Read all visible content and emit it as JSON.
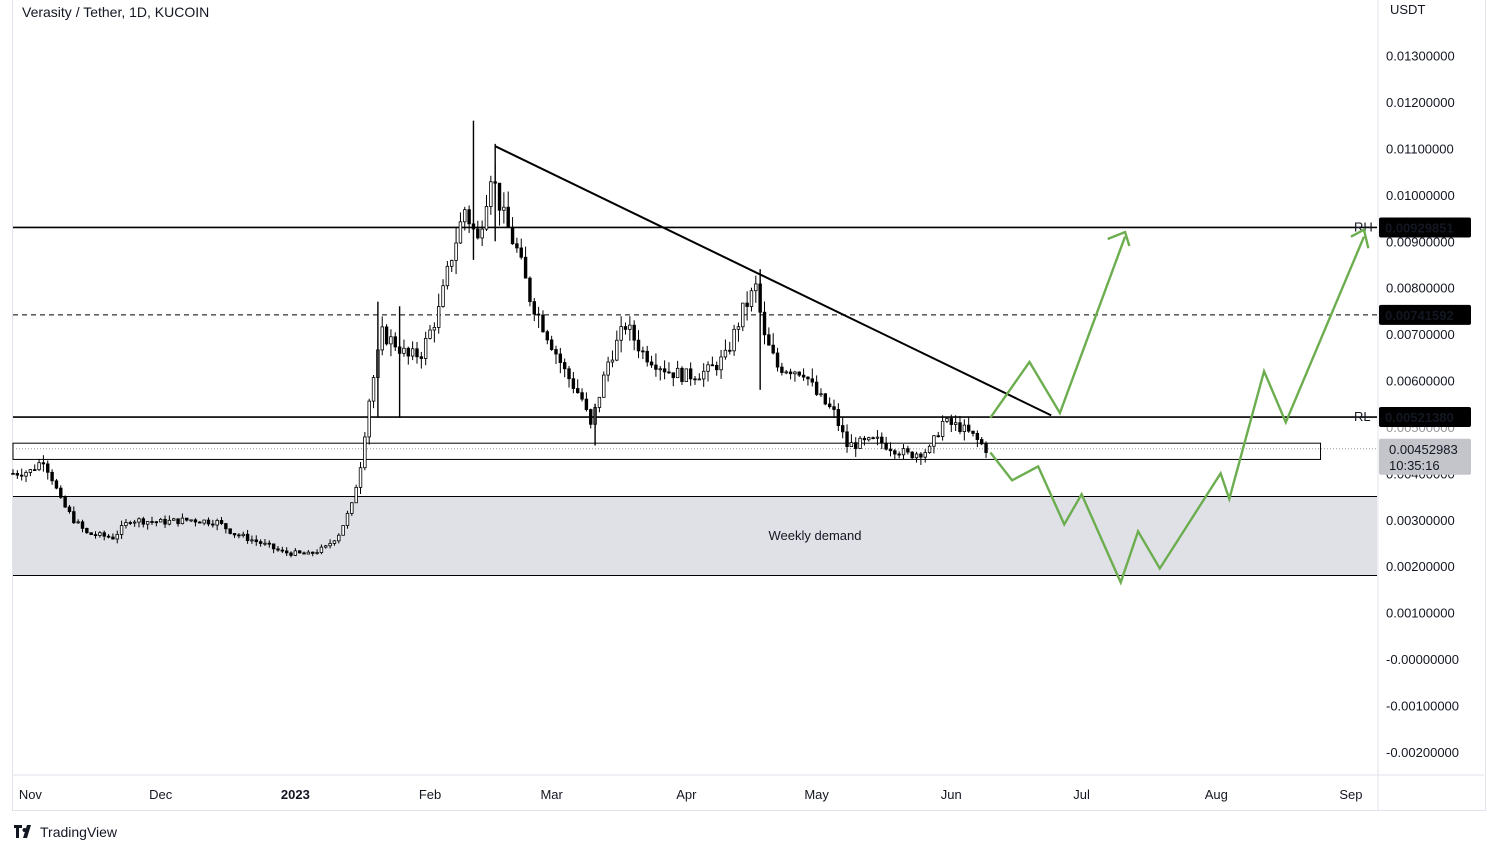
{
  "header": {
    "title": "Verasity / Tether, 1D, KUCOIN"
  },
  "footer": {
    "brand": "TradingView"
  },
  "colors": {
    "candle": "#000000",
    "projection": "#6cae4f",
    "demand_fill": "#e0e1e6",
    "background": "#ffffff",
    "grid_frame": "#e0e3eb"
  },
  "chart_data": {
    "type": "candlestick",
    "symbol": "Verasity / Tether",
    "interval": "1D",
    "exchange": "KUCOIN",
    "currency_label": "USDT",
    "y_axis": {
      "min": -0.0025,
      "max": 0.0142,
      "ticks": [
        "0.01300000",
        "0.01200000",
        "0.01100000",
        "0.01000000",
        "0.00900000",
        "0.00800000",
        "0.00700000",
        "0.00600000",
        "0.00500000",
        "0.00400000",
        "0.00300000",
        "0.00200000",
        "0.00100000",
        "-0.00000000",
        "-0.00100000",
        "-0.00200000"
      ]
    },
    "x_axis": {
      "start": "2022-10-28",
      "end": "2023-09-07",
      "ticks": [
        {
          "date": "2022-11-01",
          "label": "Nov",
          "bold": false
        },
        {
          "date": "2022-12-01",
          "label": "Dec",
          "bold": false
        },
        {
          "date": "2023-01-01",
          "label": "2023",
          "bold": true
        },
        {
          "date": "2023-02-01",
          "label": "Feb",
          "bold": false
        },
        {
          "date": "2023-03-01",
          "label": "Mar",
          "bold": false
        },
        {
          "date": "2023-04-01",
          "label": "Apr",
          "bold": false
        },
        {
          "date": "2023-05-01",
          "label": "May",
          "bold": false
        },
        {
          "date": "2023-06-01",
          "label": "Jun",
          "bold": false
        },
        {
          "date": "2023-07-01",
          "label": "Jul",
          "bold": false
        },
        {
          "date": "2023-08-01",
          "label": "Aug",
          "bold": false
        },
        {
          "date": "2023-09-01",
          "label": "Sep",
          "bold": false
        }
      ]
    },
    "price_path": [
      [
        "2022-10-28",
        0.004
      ],
      [
        "2022-11-01",
        0.00405
      ],
      [
        "2022-11-04",
        0.0043
      ],
      [
        "2022-11-06",
        0.0039
      ],
      [
        "2022-11-08",
        0.0034
      ],
      [
        "2022-11-11",
        0.003
      ],
      [
        "2022-11-14",
        0.0027
      ],
      [
        "2022-11-20",
        0.00262
      ],
      [
        "2022-11-24",
        0.003
      ],
      [
        "2022-12-01",
        0.00295
      ],
      [
        "2022-12-08",
        0.003
      ],
      [
        "2022-12-14",
        0.00295
      ],
      [
        "2022-12-18",
        0.0027
      ],
      [
        "2022-12-24",
        0.0025
      ],
      [
        "2022-12-29",
        0.0023
      ],
      [
        "2023-01-04",
        0.00225
      ],
      [
        "2023-01-08",
        0.0024
      ],
      [
        "2023-01-11",
        0.0027
      ],
      [
        "2023-01-14",
        0.0033
      ],
      [
        "2023-01-16",
        0.0042
      ],
      [
        "2023-01-18",
        0.0056
      ],
      [
        "2023-01-21",
        0.007
      ],
      [
        "2023-01-24",
        0.0068
      ],
      [
        "2023-01-27",
        0.0065
      ],
      [
        "2023-01-30",
        0.0066
      ],
      [
        "2023-02-03",
        0.0075
      ],
      [
        "2023-02-06",
        0.0087
      ],
      [
        "2023-02-09",
        0.0097
      ],
      [
        "2023-02-12",
        0.009
      ],
      [
        "2023-02-15",
        0.0105
      ],
      [
        "2023-02-18",
        0.0095
      ],
      [
        "2023-02-21",
        0.0088
      ],
      [
        "2023-02-24",
        0.0078
      ],
      [
        "2023-02-28",
        0.007
      ],
      [
        "2023-03-04",
        0.0062
      ],
      [
        "2023-03-08",
        0.0056
      ],
      [
        "2023-03-10",
        0.005
      ],
      [
        "2023-03-14",
        0.0064
      ],
      [
        "2023-03-18",
        0.0072
      ],
      [
        "2023-03-22",
        0.0066
      ],
      [
        "2023-03-28",
        0.0062
      ],
      [
        "2023-04-01",
        0.0061
      ],
      [
        "2023-04-06",
        0.0062
      ],
      [
        "2023-04-10",
        0.0065
      ],
      [
        "2023-04-14",
        0.0075
      ],
      [
        "2023-04-17",
        0.008
      ],
      [
        "2023-04-19",
        0.0069
      ],
      [
        "2023-04-22",
        0.0063
      ],
      [
        "2023-04-28",
        0.0062
      ],
      [
        "2023-05-01",
        0.0057
      ],
      [
        "2023-05-05",
        0.0053
      ],
      [
        "2023-05-08",
        0.0046
      ],
      [
        "2023-05-15",
        0.0047
      ],
      [
        "2023-05-22",
        0.0044
      ],
      [
        "2023-05-27",
        0.0045
      ],
      [
        "2023-05-30",
        0.0051
      ],
      [
        "2023-06-03",
        0.005
      ],
      [
        "2023-06-06",
        0.0048
      ],
      [
        "2023-06-09",
        0.00453
      ]
    ],
    "spikes": [
      [
        "2023-02-11",
        0.0116,
        0.0086
      ],
      [
        "2023-02-16",
        0.0111,
        0.009
      ],
      [
        "2023-01-20",
        0.0077,
        0.0052
      ],
      [
        "2023-01-25",
        0.0076,
        0.0052
      ],
      [
        "2023-03-11",
        0.0055,
        0.0046
      ],
      [
        "2023-04-18",
        0.0084,
        0.0058
      ]
    ],
    "levels": [
      {
        "name": "RH",
        "price": 0.00929851,
        "label": "0.00929851",
        "style": "solid"
      },
      {
        "name": "mid",
        "price": 0.00741592,
        "label": "0.00741592",
        "style": "dashed"
      },
      {
        "name": "RL",
        "price": 0.0052138,
        "label": "0.00521380",
        "style": "solid"
      }
    ],
    "current_price": {
      "label": "0.00452983",
      "countdown": "10:35:16",
      "price": 0.00452983
    },
    "zones": [
      {
        "name": "support-box",
        "start": "2022-10-28",
        "end": "2023-08-25",
        "top": 0.00465,
        "bottom": 0.0043,
        "label": ""
      },
      {
        "name": "Weekly demand",
        "start": "2022-10-28",
        "end": "2023-09-07",
        "top": 0.0035,
        "bottom": 0.0018,
        "label": "Weekly demand"
      }
    ],
    "trendline": {
      "from": [
        "2023-02-16",
        0.01105
      ],
      "to": [
        "2023-06-24",
        0.00525
      ]
    },
    "projection_bullish": [
      [
        "2023-06-10",
        0.0052
      ],
      [
        "2023-06-19",
        0.0064
      ],
      [
        "2023-06-26",
        0.0053
      ],
      [
        "2023-07-11",
        0.0091
      ]
    ],
    "projection_bullish_arrowhead": [
      [
        "2023-07-07",
        0.00905
      ],
      [
        "2023-07-11",
        0.0092
      ],
      [
        "2023-07-12",
        0.0089
      ]
    ],
    "projection_bearish": [
      [
        "2023-06-10",
        0.00445
      ],
      [
        "2023-06-15",
        0.00385
      ],
      [
        "2023-06-21",
        0.00415
      ],
      [
        "2023-06-27",
        0.0029
      ],
      [
        "2023-07-01",
        0.00355
      ],
      [
        "2023-07-10",
        0.00165
      ],
      [
        "2023-07-14",
        0.00275
      ],
      [
        "2023-07-19",
        0.00195
      ],
      [
        "2023-08-02",
        0.004
      ],
      [
        "2023-08-04",
        0.00345
      ],
      [
        "2023-08-12",
        0.0062
      ],
      [
        "2023-08-17",
        0.0051
      ],
      [
        "2023-09-04",
        0.0091
      ]
    ],
    "projection_bearish_arrowhead": [
      [
        "2023-09-01",
        0.0091
      ],
      [
        "2023-09-04",
        0.00925
      ],
      [
        "2023-09-05",
        0.00885
      ]
    ]
  }
}
